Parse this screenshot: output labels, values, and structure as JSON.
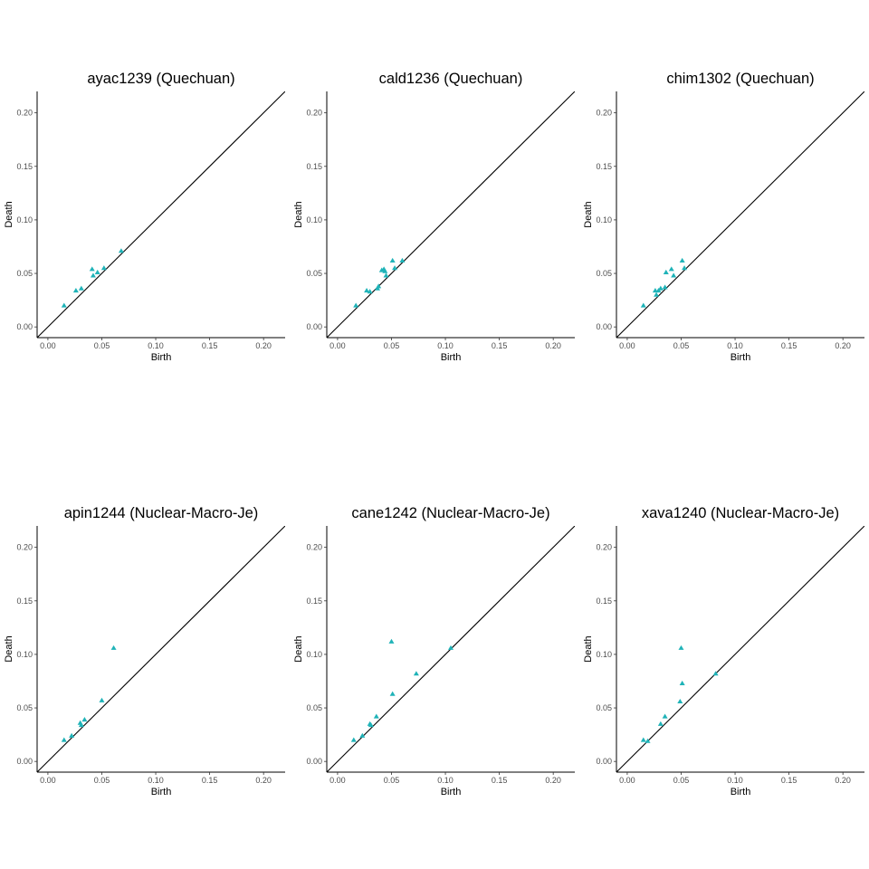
{
  "colors": {
    "point": "#1fb3b8",
    "axis": "#000000",
    "tick_text": "#4d4d4d",
    "background": "#ffffff"
  },
  "chart_data": [
    {
      "type": "scatter",
      "marker": "triangle",
      "title": "ayac1239 (Quechuan)",
      "xlabel": "Birth",
      "ylabel": "Death",
      "xlim": [
        -0.01,
        0.22
      ],
      "ylim": [
        -0.01,
        0.22
      ],
      "grid": false,
      "diagonal": true,
      "xticks": [
        "0.00",
        "0.05",
        "0.10",
        "0.15",
        "0.20"
      ],
      "yticks": [
        "0.00",
        "0.05",
        "0.10",
        "0.15",
        "0.20"
      ],
      "points": [
        [
          0.015,
          0.02
        ],
        [
          0.026,
          0.034
        ],
        [
          0.031,
          0.036
        ],
        [
          0.041,
          0.054
        ],
        [
          0.042,
          0.048
        ],
        [
          0.046,
          0.051
        ],
        [
          0.052,
          0.055
        ],
        [
          0.068,
          0.071
        ]
      ]
    },
    {
      "type": "scatter",
      "marker": "triangle",
      "title": "cald1236 (Quechuan)",
      "xlabel": "Birth",
      "ylabel": "Death",
      "xlim": [
        -0.01,
        0.22
      ],
      "ylim": [
        -0.01,
        0.22
      ],
      "grid": false,
      "diagonal": true,
      "xticks": [
        "0.00",
        "0.05",
        "0.10",
        "0.15",
        "0.20"
      ],
      "yticks": [
        "0.00",
        "0.05",
        "0.10",
        "0.15",
        "0.20"
      ],
      "points": [
        [
          0.017,
          0.02
        ],
        [
          0.027,
          0.034
        ],
        [
          0.03,
          0.033
        ],
        [
          0.037,
          0.036
        ],
        [
          0.038,
          0.038
        ],
        [
          0.041,
          0.053
        ],
        [
          0.043,
          0.054
        ],
        [
          0.044,
          0.052
        ],
        [
          0.045,
          0.048
        ],
        [
          0.051,
          0.062
        ],
        [
          0.053,
          0.055
        ],
        [
          0.06,
          0.062
        ]
      ]
    },
    {
      "type": "scatter",
      "marker": "triangle",
      "title": "chim1302 (Quechuan)",
      "xlabel": "Birth",
      "ylabel": "Death",
      "xlim": [
        -0.01,
        0.22
      ],
      "ylim": [
        -0.01,
        0.22
      ],
      "grid": false,
      "diagonal": true,
      "xticks": [
        "0.00",
        "0.05",
        "0.10",
        "0.15",
        "0.20"
      ],
      "yticks": [
        "0.00",
        "0.05",
        "0.10",
        "0.15",
        "0.20"
      ],
      "points": [
        [
          0.015,
          0.02
        ],
        [
          0.026,
          0.034
        ],
        [
          0.027,
          0.03
        ],
        [
          0.029,
          0.034
        ],
        [
          0.031,
          0.036
        ],
        [
          0.035,
          0.037
        ],
        [
          0.036,
          0.051
        ],
        [
          0.041,
          0.054
        ],
        [
          0.043,
          0.048
        ],
        [
          0.051,
          0.062
        ],
        [
          0.053,
          0.055
        ]
      ]
    },
    {
      "type": "scatter",
      "marker": "triangle",
      "title": "apin1244 (Nuclear-Macro-Je)",
      "xlabel": "Birth",
      "ylabel": "Death",
      "xlim": [
        -0.01,
        0.22
      ],
      "ylim": [
        -0.01,
        0.22
      ],
      "grid": false,
      "diagonal": true,
      "xticks": [
        "0.00",
        "0.05",
        "0.10",
        "0.15",
        "0.20"
      ],
      "yticks": [
        "0.00",
        "0.05",
        "0.10",
        "0.15",
        "0.20"
      ],
      "points": [
        [
          0.015,
          0.02
        ],
        [
          0.022,
          0.024
        ],
        [
          0.03,
          0.036
        ],
        [
          0.031,
          0.034
        ],
        [
          0.034,
          0.039
        ],
        [
          0.05,
          0.057
        ],
        [
          0.061,
          0.106
        ]
      ]
    },
    {
      "type": "scatter",
      "marker": "triangle",
      "title": "cane1242 (Nuclear-Macro-Je)",
      "xlabel": "Birth",
      "ylabel": "Death",
      "xlim": [
        -0.01,
        0.22
      ],
      "ylim": [
        -0.01,
        0.22
      ],
      "grid": false,
      "diagonal": true,
      "xticks": [
        "0.00",
        "0.05",
        "0.10",
        "0.15",
        "0.20"
      ],
      "yticks": [
        "0.00",
        "0.05",
        "0.10",
        "0.15",
        "0.20"
      ],
      "points": [
        [
          0.015,
          0.02
        ],
        [
          0.023,
          0.024
        ],
        [
          0.03,
          0.035
        ],
        [
          0.031,
          0.034
        ],
        [
          0.036,
          0.042
        ],
        [
          0.05,
          0.112
        ],
        [
          0.051,
          0.063
        ],
        [
          0.073,
          0.082
        ],
        [
          0.105,
          0.106
        ]
      ]
    },
    {
      "type": "scatter",
      "marker": "triangle",
      "title": "xava1240 (Nuclear-Macro-Je)",
      "xlabel": "Birth",
      "ylabel": "Death",
      "xlim": [
        -0.01,
        0.22
      ],
      "ylim": [
        -0.01,
        0.22
      ],
      "grid": false,
      "diagonal": true,
      "xticks": [
        "0.00",
        "0.05",
        "0.10",
        "0.15",
        "0.20"
      ],
      "yticks": [
        "0.00",
        "0.05",
        "0.10",
        "0.15",
        "0.20"
      ],
      "points": [
        [
          0.015,
          0.02
        ],
        [
          0.019,
          0.019
        ],
        [
          0.031,
          0.035
        ],
        [
          0.035,
          0.042
        ],
        [
          0.049,
          0.056
        ],
        [
          0.05,
          0.106
        ],
        [
          0.051,
          0.073
        ],
        [
          0.082,
          0.082
        ]
      ]
    }
  ]
}
